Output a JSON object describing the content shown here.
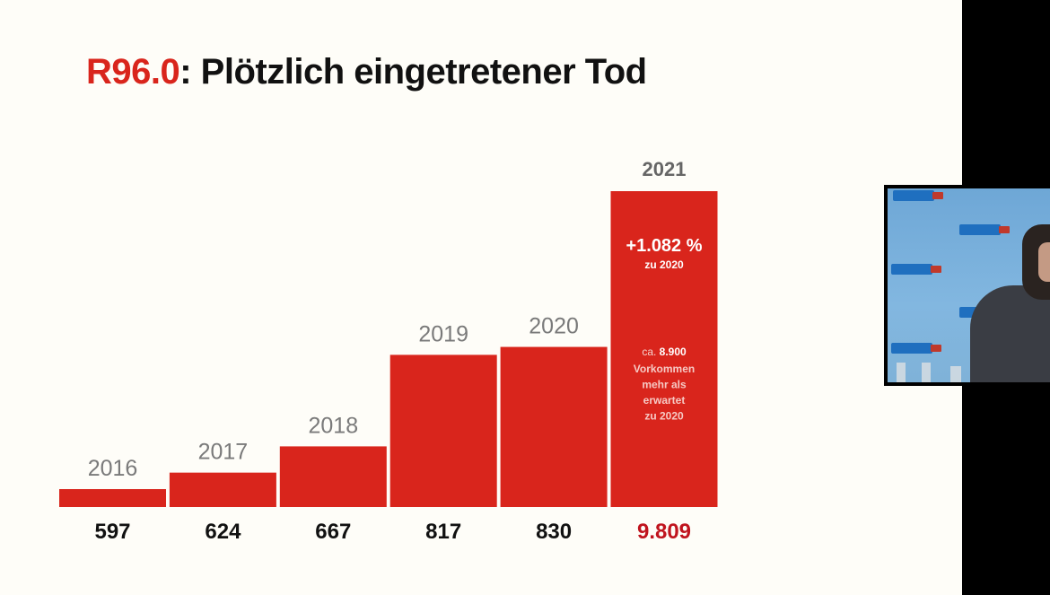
{
  "slide": {
    "title_code": "R96.0",
    "title_rest": ": Plötzlich eingetretener Tod"
  },
  "colors": {
    "bar": "#d9251c",
    "highlight_value": "#c0141e",
    "year_label": "#7a7a7a",
    "value_label": "#111111",
    "background": "#fefdf8"
  },
  "chart_data": {
    "type": "bar",
    "title": "R96.0: Plötzlich eingetretener Tod",
    "categories": [
      "2016",
      "2017",
      "2018",
      "2019",
      "2020",
      "2021"
    ],
    "values": [
      597,
      624,
      667,
      817,
      830,
      9809
    ],
    "value_labels": [
      "597",
      "624",
      "667",
      "817",
      "830",
      "9.809"
    ],
    "highlight_index": 5,
    "ylim": [
      0,
      9809
    ],
    "grid": false,
    "legend": "none",
    "annotations": {
      "change_value": "+1.082 %",
      "change_ref": "zu 2020",
      "excess_prefix": "ca. ",
      "excess_value": "8.900",
      "excess_lines": [
        "Vorkommen",
        "mehr als",
        "erwartet",
        "zu 2020"
      ]
    }
  },
  "video": {
    "icons": [
      "party-logo-icon",
      "speaker-person-icon"
    ]
  }
}
